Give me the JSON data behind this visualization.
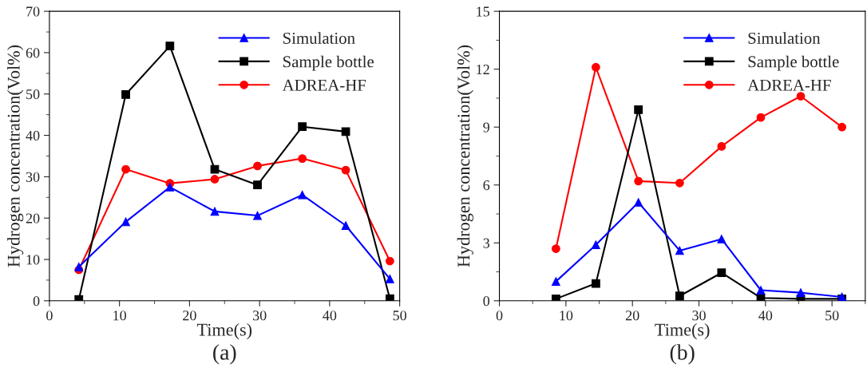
{
  "chart_data": [
    {
      "type": "line",
      "xlabel": "Time(s)",
      "ylabel": "Hydrogen concentration(Vol%)",
      "annotations": [
        "(a)"
      ],
      "xlim": [
        0,
        50
      ],
      "xticks": [
        0,
        10,
        20,
        30,
        40,
        50
      ],
      "ylim": [
        0,
        70
      ],
      "yticks": [
        0,
        10,
        20,
        30,
        40,
        50,
        60,
        70
      ],
      "legend": "top right",
      "grid": false,
      "x": [
        4.2,
        10.9,
        17.2,
        23.6,
        29.7,
        36.1,
        42.3,
        48.6
      ],
      "series": [
        {
          "name": "Simulation",
          "color": "#0000ff",
          "marker": "triangle",
          "values": [
            8.2,
            19.1,
            27.5,
            21.6,
            20.6,
            25.6,
            18.2,
            5.3
          ]
        },
        {
          "name": "Sample bottle",
          "color": "#000000",
          "marker": "square",
          "values": [
            0.3,
            49.9,
            61.6,
            31.8,
            28.0,
            42.1,
            40.9,
            0.5
          ]
        },
        {
          "name": "ADREA-HF",
          "color": "#ff0000",
          "marker": "circle",
          "values": [
            7.5,
            31.8,
            28.4,
            29.4,
            32.6,
            34.4,
            31.6,
            9.6
          ]
        }
      ]
    },
    {
      "type": "line",
      "xlabel": "Time(s)",
      "ylabel": "Hydrogen concentration(Vol%)",
      "annotations": [
        "(b)"
      ],
      "xlim": [
        0,
        55
      ],
      "xticks": [
        0,
        10,
        20,
        30,
        40,
        50
      ],
      "ylim": [
        0,
        15
      ],
      "yticks": [
        0,
        3,
        6,
        9,
        12,
        15
      ],
      "legend": "top right",
      "grid": false,
      "x": [
        8.5,
        14.5,
        20.9,
        27.1,
        33.4,
        39.3,
        45.3,
        51.5
      ],
      "series": [
        {
          "name": "Simulation",
          "color": "#0000ff",
          "marker": "triangle",
          "values": [
            1.0,
            2.9,
            5.1,
            2.6,
            3.2,
            0.55,
            0.42,
            0.2
          ]
        },
        {
          "name": "Sample bottle",
          "color": "#000000",
          "marker": "square",
          "values": [
            0.1,
            0.9,
            9.9,
            0.25,
            1.45,
            0.15,
            0.1,
            0.1
          ]
        },
        {
          "name": "ADREA-HF",
          "color": "#ff0000",
          "marker": "circle",
          "values": [
            2.7,
            12.1,
            6.2,
            6.1,
            8.0,
            9.5,
            10.6,
            9.0
          ]
        }
      ]
    }
  ]
}
